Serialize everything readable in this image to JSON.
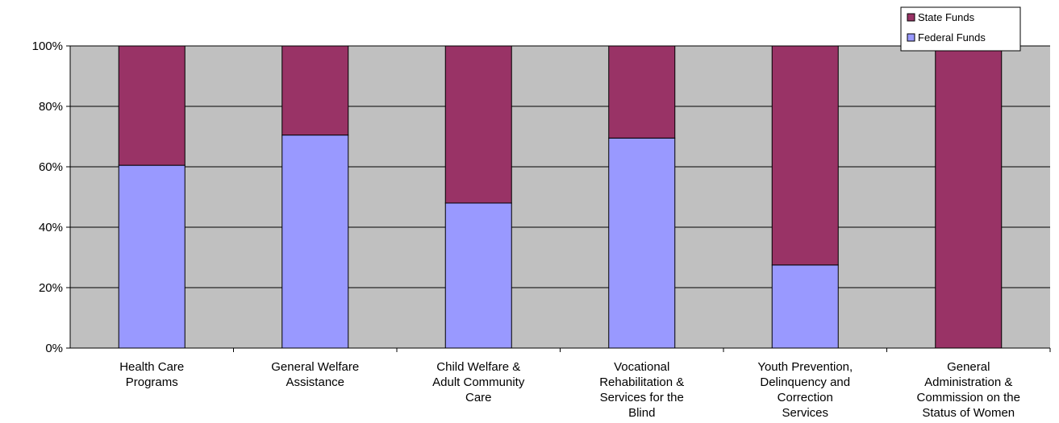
{
  "chart_data": {
    "type": "bar",
    "stacked": true,
    "percent": true,
    "categories": [
      [
        "Health Care",
        "Programs"
      ],
      [
        "General Welfare",
        "Assistance"
      ],
      [
        "Child Welfare &",
        "Adult Community",
        "Care"
      ],
      [
        "Vocational",
        "Rehabilitation &",
        "Services for the",
        "Blind"
      ],
      [
        "Youth Prevention,",
        "Delinquency and",
        "Correction",
        "Services"
      ],
      [
        "General",
        "Administration &",
        "Commission on the",
        "Status of Women"
      ]
    ],
    "series": [
      {
        "name": "Federal Funds",
        "color": "#9999ff",
        "values": [
          60.5,
          70.5,
          48,
          69.5,
          27.5,
          0
        ]
      },
      {
        "name": "State Funds",
        "color": "#993366",
        "values": [
          39.5,
          29.5,
          52,
          30.5,
          72.5,
          100
        ]
      }
    ],
    "y_ticks": [
      "0%",
      "20%",
      "40%",
      "60%",
      "80%",
      "100%"
    ],
    "ylim": [
      0,
      100
    ],
    "grid": true,
    "plot_background": "#c0c0c0",
    "legend": {
      "position": "top-right",
      "entries": [
        "State Funds",
        "Federal Funds"
      ]
    },
    "title": "",
    "xlabel": "",
    "ylabel": ""
  }
}
